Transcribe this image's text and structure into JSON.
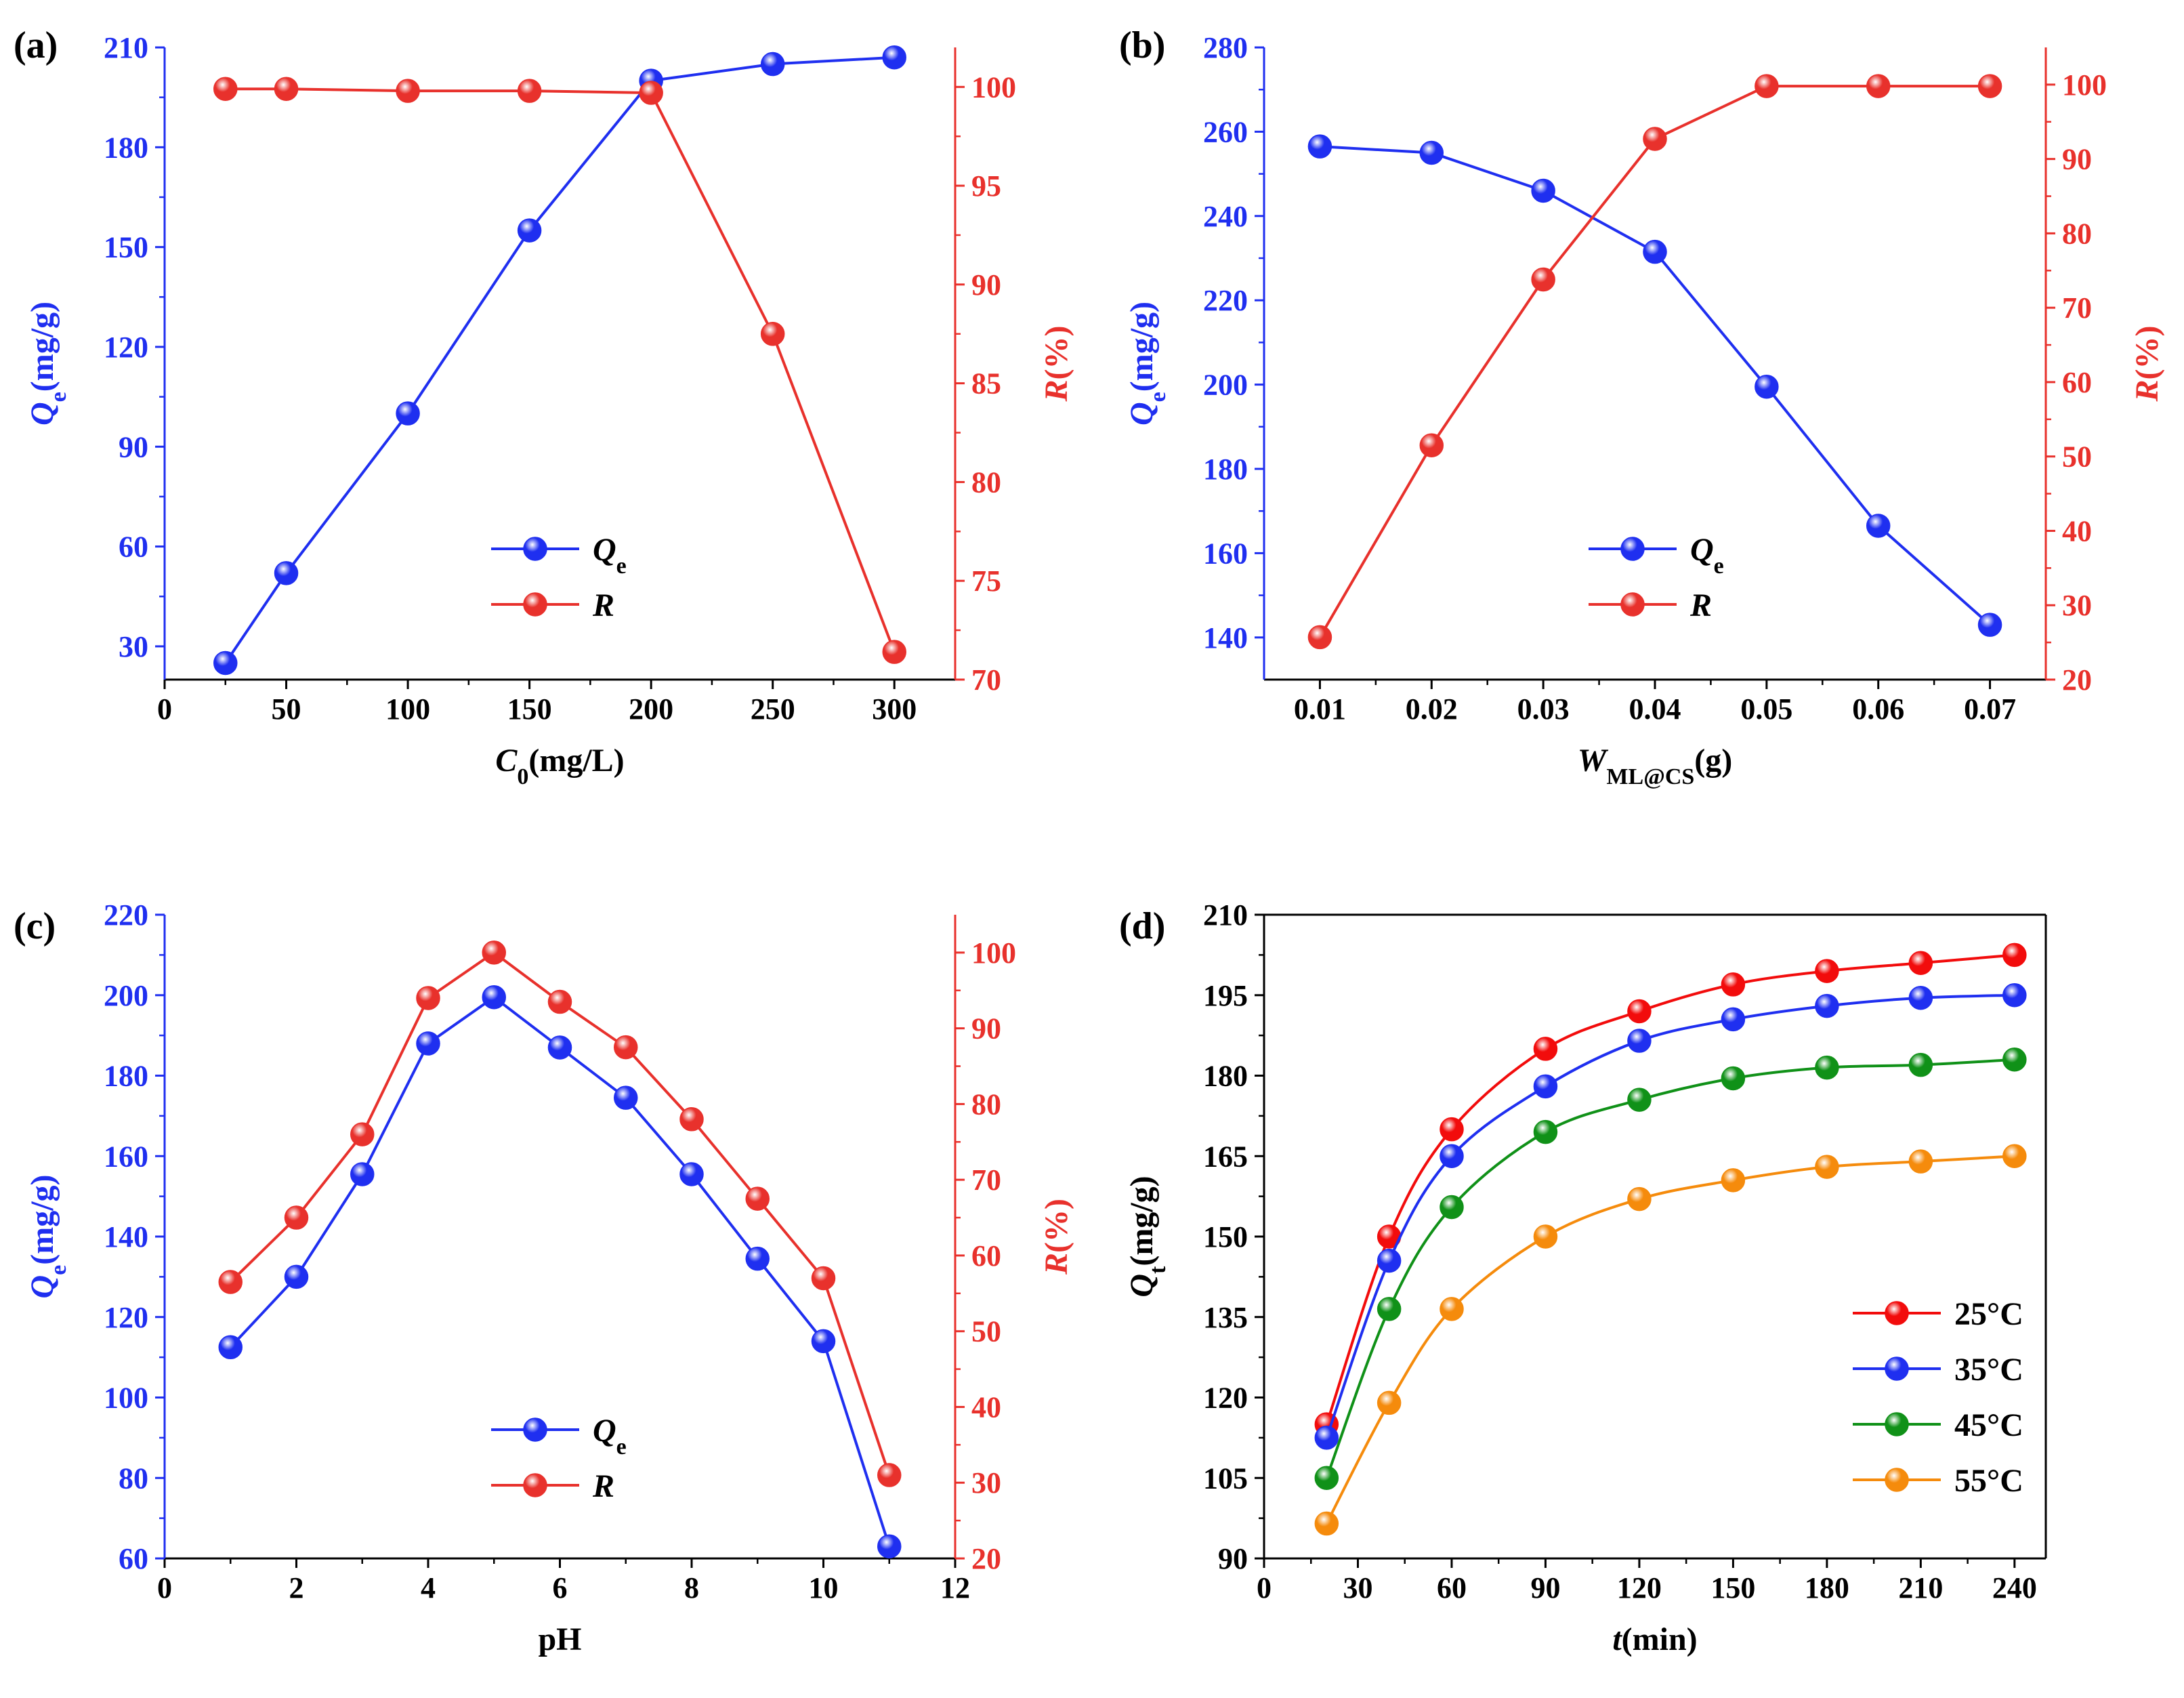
{
  "chart_data": [
    {
      "panel": "(a)",
      "type": "line",
      "x": [
        25,
        50,
        100,
        150,
        200,
        250,
        300
      ],
      "xlabel": {
        "main": "C",
        "sub": "0",
        "rest": "(mg/L)"
      },
      "xlim": [
        0,
        325
      ],
      "xticks": [
        0,
        50,
        100,
        150,
        200,
        250,
        300
      ],
      "ylabel_left": {
        "main": "Q",
        "sub": "e",
        "rest": "(mg/g)"
      },
      "ylim_left": [
        20,
        210
      ],
      "yticks_left": [
        30,
        60,
        90,
        120,
        150,
        180,
        210
      ],
      "ylabel_right": {
        "main": "R",
        "rest": "(%)"
      },
      "ylim_right": [
        70,
        102
      ],
      "yticks_right": [
        70,
        75,
        80,
        85,
        90,
        95,
        100
      ],
      "legend_position": "center-right",
      "series": [
        {
          "name": "Q",
          "sub": "e",
          "axis": "left",
          "color": "#1f2ff0",
          "values": [
            25,
            52,
            100,
            155,
            200,
            205,
            207
          ]
        },
        {
          "name": "R",
          "sub": "",
          "axis": "right",
          "color": "#e8312c",
          "values": [
            99.9,
            99.9,
            99.8,
            99.8,
            99.7,
            87.5,
            71.4
          ]
        }
      ]
    },
    {
      "panel": "(b)",
      "type": "line",
      "x": [
        0.01,
        0.02,
        0.03,
        0.04,
        0.05,
        0.06,
        0.07
      ],
      "xlabel": {
        "main": "W",
        "sub": "ML@CS",
        "rest": "(g)"
      },
      "xlim": [
        0.005,
        0.075
      ],
      "xticks": [
        0.01,
        0.02,
        0.03,
        0.04,
        0.05,
        0.06,
        0.07
      ],
      "xtick_labels": [
        "0.01",
        "0.02",
        "0.03",
        "0.04",
        "0.05",
        "0.06",
        "0.07"
      ],
      "ylabel_left": {
        "main": "Q",
        "sub": "e",
        "rest": "(mg/g)"
      },
      "ylim_left": [
        130,
        280
      ],
      "yticks_left": [
        140,
        160,
        180,
        200,
        220,
        240,
        260,
        280
      ],
      "ylabel_right": {
        "main": "R",
        "rest": "(%)"
      },
      "ylim_right": [
        20,
        105
      ],
      "yticks_right": [
        20,
        30,
        40,
        50,
        60,
        70,
        80,
        90,
        100
      ],
      "legend_position": "center-right",
      "series": [
        {
          "name": "Q",
          "sub": "e",
          "axis": "left",
          "color": "#1f2ff0",
          "values": [
            256.5,
            255,
            246,
            231.5,
            199.5,
            166.5,
            143
          ]
        },
        {
          "name": "R",
          "sub": "",
          "axis": "right",
          "color": "#e8312c",
          "values": [
            25.7,
            51.5,
            73.8,
            92.7,
            99.8,
            99.8,
            99.8
          ]
        }
      ]
    },
    {
      "panel": "(c)",
      "type": "line",
      "x": [
        1,
        2,
        3,
        4,
        5,
        6,
        7,
        8,
        9,
        10,
        11
      ],
      "xlabel": {
        "main": "pH",
        "sub": "",
        "rest": ""
      },
      "xlabel_italic": false,
      "xlim": [
        0,
        12
      ],
      "xticks": [
        0,
        2,
        4,
        6,
        8,
        10,
        12
      ],
      "ylabel_left": {
        "main": "Q",
        "sub": "e",
        "rest": "(mg/g)"
      },
      "ylim_left": [
        60,
        220
      ],
      "yticks_left": [
        60,
        80,
        100,
        120,
        140,
        160,
        180,
        200,
        220
      ],
      "ylabel_right": {
        "main": "R",
        "rest": "(%)"
      },
      "ylim_right": [
        20,
        105
      ],
      "yticks_right": [
        20,
        30,
        40,
        50,
        60,
        70,
        80,
        90,
        100
      ],
      "legend_position": "bottom-right",
      "series": [
        {
          "name": "Q",
          "sub": "e",
          "axis": "left",
          "color": "#1f2ff0",
          "values": [
            112.5,
            130,
            155.5,
            188,
            199.5,
            187,
            174.5,
            155.5,
            134.5,
            114,
            63
          ]
        },
        {
          "name": "R",
          "sub": "",
          "axis": "right",
          "color": "#e8312c",
          "values": [
            56.5,
            65,
            76,
            94,
            100,
            93.5,
            87.5,
            78,
            67.5,
            57,
            31
          ]
        }
      ]
    },
    {
      "panel": "(d)",
      "type": "line",
      "x": [
        20,
        40,
        60,
        90,
        120,
        150,
        180,
        210,
        240
      ],
      "xlabel": {
        "main": "t",
        "sub": "",
        "rest": "(min)"
      },
      "xlim": [
        0,
        250
      ],
      "xticks": [
        0,
        30,
        60,
        90,
        120,
        150,
        180,
        210,
        240
      ],
      "ylabel_left": {
        "main": "Q",
        "sub": "t",
        "rest": "(mg/g)"
      },
      "ylim_left": [
        90,
        210
      ],
      "yticks_left": [
        90,
        105,
        120,
        135,
        150,
        165,
        180,
        195,
        210
      ],
      "legend_position": "bottom-right",
      "series": [
        {
          "name": "25°C",
          "axis": "left",
          "color": "#f20c0c",
          "values": [
            115,
            150,
            170,
            185,
            192,
            197,
            199.5,
            201,
            202.5
          ]
        },
        {
          "name": "35°C",
          "axis": "left",
          "color": "#1f2ff0",
          "values": [
            112.5,
            145.5,
            165,
            178,
            186.5,
            190.5,
            193,
            194.5,
            195
          ]
        },
        {
          "name": "45°C",
          "axis": "left",
          "color": "#109118",
          "values": [
            105,
            136.5,
            155.5,
            169.5,
            175.5,
            179.5,
            181.5,
            182,
            183
          ]
        },
        {
          "name": "55°C",
          "axis": "left",
          "color": "#f58b0c",
          "values": [
            96.5,
            119,
            136.5,
            150,
            157,
            160.5,
            163,
            164,
            165
          ]
        }
      ]
    }
  ]
}
